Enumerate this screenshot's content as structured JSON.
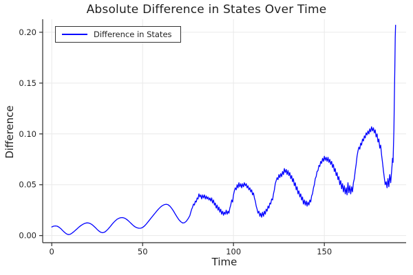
{
  "figure": {
    "background": "#FFFFFF"
  },
  "colors": {
    "line": "#0000FF",
    "grid": "#E9E9E9",
    "spine": "#2B2B2B",
    "tick": "#2B2B2B",
    "tick_text": "#1F1F1F",
    "legend_border": "#333333"
  },
  "chart_data": {
    "type": "line",
    "title": "Absolute Difference in States Over Time",
    "xlabel": "Time",
    "ylabel": "Difference",
    "xlim": [
      -5,
      195
    ],
    "ylim": [
      -0.007,
      0.2128
    ],
    "grid": true,
    "legend_position": "top-left",
    "x_ticks": [
      {
        "v": 0,
        "label": "0"
      },
      {
        "v": 50,
        "label": "50"
      },
      {
        "v": 100,
        "label": "100"
      },
      {
        "v": 150,
        "label": "150"
      }
    ],
    "y_ticks": [
      {
        "v": 0.0,
        "label": "0.00"
      },
      {
        "v": 0.05,
        "label": "0.05"
      },
      {
        "v": 0.1,
        "label": "0.10"
      },
      {
        "v": 0.15,
        "label": "0.15"
      },
      {
        "v": 0.2,
        "label": "0.20"
      }
    ],
    "series": [
      {
        "name": "Difference in States",
        "color": "#0000FF",
        "points": [
          [
            0,
            0.0085
          ],
          [
            1,
            0.0092
          ],
          [
            2,
            0.0095
          ],
          [
            3,
            0.0092
          ],
          [
            4,
            0.0082
          ],
          [
            5,
            0.0068
          ],
          [
            6,
            0.005
          ],
          [
            7,
            0.0032
          ],
          [
            8,
            0.0018
          ],
          [
            9,
            0.001
          ],
          [
            10,
            0.0012
          ],
          [
            11,
            0.0022
          ],
          [
            12,
            0.0036
          ],
          [
            13,
            0.0052
          ],
          [
            14,
            0.0068
          ],
          [
            15,
            0.0084
          ],
          [
            16,
            0.0098
          ],
          [
            17,
            0.011
          ],
          [
            18,
            0.0119
          ],
          [
            19,
            0.0124
          ],
          [
            20,
            0.0125
          ],
          [
            21,
            0.012
          ],
          [
            22,
            0.011
          ],
          [
            23,
            0.0095
          ],
          [
            24,
            0.0078
          ],
          [
            25,
            0.006
          ],
          [
            26,
            0.0044
          ],
          [
            27,
            0.0032
          ],
          [
            28,
            0.0028
          ],
          [
            29,
            0.0033
          ],
          [
            30,
            0.0046
          ],
          [
            31,
            0.0064
          ],
          [
            32,
            0.0085
          ],
          [
            33,
            0.0107
          ],
          [
            34,
            0.0128
          ],
          [
            35,
            0.0146
          ],
          [
            36,
            0.0161
          ],
          [
            37,
            0.0171
          ],
          [
            38,
            0.0176
          ],
          [
            39,
            0.0177
          ],
          [
            40,
            0.0172
          ],
          [
            41,
            0.0162
          ],
          [
            42,
            0.0148
          ],
          [
            43,
            0.0131
          ],
          [
            44,
            0.0113
          ],
          [
            45,
            0.0097
          ],
          [
            46,
            0.0084
          ],
          [
            47,
            0.0076
          ],
          [
            48,
            0.0072
          ],
          [
            49,
            0.0073
          ],
          [
            50,
            0.008
          ],
          [
            51,
            0.0094
          ],
          [
            52,
            0.0113
          ],
          [
            53,
            0.0135
          ],
          [
            54,
            0.0158
          ],
          [
            55,
            0.018
          ],
          [
            56,
            0.0202
          ],
          [
            57,
            0.0224
          ],
          [
            58,
            0.0246
          ],
          [
            59,
            0.0266
          ],
          [
            60,
            0.0283
          ],
          [
            61,
            0.0296
          ],
          [
            62,
            0.0305
          ],
          [
            63,
            0.0308
          ],
          [
            64,
            0.0303
          ],
          [
            65,
            0.029
          ],
          [
            66,
            0.0268
          ],
          [
            67,
            0.0241
          ],
          [
            68,
            0.0211
          ],
          [
            69,
            0.0181
          ],
          [
            70,
            0.0155
          ],
          [
            71,
            0.0136
          ],
          [
            72,
            0.0124
          ],
          [
            73,
            0.0126
          ],
          [
            74,
            0.014
          ],
          [
            75,
            0.0165
          ],
          [
            76,
            0.0196
          ],
          [
            76.5,
            0.023
          ],
          [
            77,
            0.026
          ],
          [
            77.5,
            0.028
          ],
          [
            78,
            0.031
          ],
          [
            78.5,
            0.03
          ],
          [
            79,
            0.034
          ],
          [
            79.5,
            0.033
          ],
          [
            80,
            0.037
          ],
          [
            80.5,
            0.036
          ],
          [
            81,
            0.041
          ],
          [
            81.5,
            0.038
          ],
          [
            82,
            0.04
          ],
          [
            82.5,
            0.036
          ],
          [
            83,
            0.04
          ],
          [
            83.5,
            0.037
          ],
          [
            84,
            0.04
          ],
          [
            84.5,
            0.036
          ],
          [
            85,
            0.039
          ],
          [
            85.5,
            0.036
          ],
          [
            86,
            0.038
          ],
          [
            86.5,
            0.035
          ],
          [
            87,
            0.037
          ],
          [
            87.5,
            0.034
          ],
          [
            88,
            0.037
          ],
          [
            88.5,
            0.032
          ],
          [
            89,
            0.035
          ],
          [
            89.5,
            0.03
          ],
          [
            90,
            0.032
          ],
          [
            90.5,
            0.027
          ],
          [
            91,
            0.03
          ],
          [
            91.5,
            0.025
          ],
          [
            92,
            0.028
          ],
          [
            92.5,
            0.023
          ],
          [
            93,
            0.026
          ],
          [
            93.5,
            0.021
          ],
          [
            94,
            0.024
          ],
          [
            94.5,
            0.02
          ],
          [
            95,
            0.023
          ],
          [
            95.5,
            0.021
          ],
          [
            96,
            0.025
          ],
          [
            96.5,
            0.021
          ],
          [
            97,
            0.024
          ],
          [
            97.5,
            0.022
          ],
          [
            98,
            0.027
          ],
          [
            98.5,
            0.03
          ],
          [
            99,
            0.035
          ],
          [
            99.5,
            0.033
          ],
          [
            100,
            0.04
          ],
          [
            100.5,
            0.044
          ],
          [
            101,
            0.047
          ],
          [
            101.5,
            0.045
          ],
          [
            102,
            0.05
          ],
          [
            102.5,
            0.047
          ],
          [
            103,
            0.052
          ],
          [
            103.5,
            0.048
          ],
          [
            104,
            0.051
          ],
          [
            104.5,
            0.047
          ],
          [
            105,
            0.051
          ],
          [
            105.5,
            0.048
          ],
          [
            106,
            0.052
          ],
          [
            106.5,
            0.049
          ],
          [
            107,
            0.051
          ],
          [
            107.5,
            0.047
          ],
          [
            108,
            0.049
          ],
          [
            108.5,
            0.045
          ],
          [
            109,
            0.047
          ],
          [
            109.5,
            0.043
          ],
          [
            110,
            0.045
          ],
          [
            110.5,
            0.04
          ],
          [
            111,
            0.042
          ],
          [
            111.5,
            0.037
          ],
          [
            112,
            0.034
          ],
          [
            112.5,
            0.029
          ],
          [
            113,
            0.026
          ],
          [
            113.5,
            0.022
          ],
          [
            114,
            0.024
          ],
          [
            114.5,
            0.019
          ],
          [
            115,
            0.022
          ],
          [
            115.5,
            0.018
          ],
          [
            116,
            0.023
          ],
          [
            116.5,
            0.019
          ],
          [
            117,
            0.024
          ],
          [
            117.5,
            0.021
          ],
          [
            118,
            0.026
          ],
          [
            118.5,
            0.024
          ],
          [
            119,
            0.029
          ],
          [
            119.5,
            0.027
          ],
          [
            120,
            0.032
          ],
          [
            120.5,
            0.031
          ],
          [
            121,
            0.036
          ],
          [
            121.5,
            0.035
          ],
          [
            122,
            0.041
          ],
          [
            122.5,
            0.045
          ],
          [
            123,
            0.051
          ],
          [
            123.5,
            0.054
          ],
          [
            124,
            0.057
          ],
          [
            124.5,
            0.055
          ],
          [
            125,
            0.06
          ],
          [
            125.5,
            0.057
          ],
          [
            126,
            0.061
          ],
          [
            126.5,
            0.058
          ],
          [
            127,
            0.063
          ],
          [
            127.5,
            0.06
          ],
          [
            128,
            0.066
          ],
          [
            128.5,
            0.062
          ],
          [
            129,
            0.065
          ],
          [
            129.5,
            0.06
          ],
          [
            130,
            0.064
          ],
          [
            130.5,
            0.059
          ],
          [
            131,
            0.062
          ],
          [
            131.5,
            0.056
          ],
          [
            132,
            0.059
          ],
          [
            132.5,
            0.053
          ],
          [
            133,
            0.056
          ],
          [
            133.5,
            0.049
          ],
          [
            134,
            0.052
          ],
          [
            134.5,
            0.045
          ],
          [
            135,
            0.048
          ],
          [
            135.5,
            0.041
          ],
          [
            136,
            0.044
          ],
          [
            136.5,
            0.038
          ],
          [
            137,
            0.041
          ],
          [
            137.5,
            0.035
          ],
          [
            138,
            0.038
          ],
          [
            138.5,
            0.031
          ],
          [
            139,
            0.035
          ],
          [
            139.5,
            0.03
          ],
          [
            140,
            0.034
          ],
          [
            140.5,
            0.029
          ],
          [
            141,
            0.033
          ],
          [
            141.5,
            0.03
          ],
          [
            142,
            0.035
          ],
          [
            142.5,
            0.033
          ],
          [
            143,
            0.039
          ],
          [
            143.5,
            0.041
          ],
          [
            144,
            0.047
          ],
          [
            144.5,
            0.05
          ],
          [
            145,
            0.056
          ],
          [
            145.5,
            0.058
          ],
          [
            146,
            0.063
          ],
          [
            146.5,
            0.064
          ],
          [
            147,
            0.069
          ],
          [
            147.5,
            0.068
          ],
          [
            148,
            0.073
          ],
          [
            148.5,
            0.071
          ],
          [
            149,
            0.076
          ],
          [
            149.5,
            0.073
          ],
          [
            150,
            0.078
          ],
          [
            150.5,
            0.074
          ],
          [
            151,
            0.077
          ],
          [
            151.5,
            0.073
          ],
          [
            152,
            0.077
          ],
          [
            152.5,
            0.072
          ],
          [
            153,
            0.075
          ],
          [
            153.5,
            0.07
          ],
          [
            154,
            0.073
          ],
          [
            154.5,
            0.067
          ],
          [
            155,
            0.07
          ],
          [
            155.5,
            0.063
          ],
          [
            156,
            0.066
          ],
          [
            156.5,
            0.059
          ],
          [
            157,
            0.062
          ],
          [
            157.5,
            0.055
          ],
          [
            158,
            0.058
          ],
          [
            158.5,
            0.05
          ],
          [
            159,
            0.054
          ],
          [
            159.5,
            0.046
          ],
          [
            160,
            0.051
          ],
          [
            160.5,
            0.043
          ],
          [
            161,
            0.049
          ],
          [
            161.5,
            0.041
          ],
          [
            162,
            0.047
          ],
          [
            162.5,
            0.04
          ],
          [
            163,
            0.052
          ],
          [
            163.5,
            0.042
          ],
          [
            164,
            0.049
          ],
          [
            164.5,
            0.041
          ],
          [
            165,
            0.048
          ],
          [
            165.5,
            0.043
          ],
          [
            166,
            0.052
          ],
          [
            166.5,
            0.056
          ],
          [
            167,
            0.064
          ],
          [
            167.5,
            0.07
          ],
          [
            168,
            0.078
          ],
          [
            168.5,
            0.083
          ],
          [
            169,
            0.087
          ],
          [
            169.5,
            0.085
          ],
          [
            170,
            0.091
          ],
          [
            170.5,
            0.089
          ],
          [
            171,
            0.095
          ],
          [
            171.5,
            0.093
          ],
          [
            172,
            0.098
          ],
          [
            172.5,
            0.096
          ],
          [
            173,
            0.101
          ],
          [
            173.5,
            0.099
          ],
          [
            174,
            0.103
          ],
          [
            174.5,
            0.1
          ],
          [
            175,
            0.105
          ],
          [
            175.5,
            0.102
          ],
          [
            176,
            0.107
          ],
          [
            176.5,
            0.103
          ],
          [
            177,
            0.106
          ],
          [
            177.5,
            0.101
          ],
          [
            178,
            0.104
          ],
          [
            178.5,
            0.097
          ],
          [
            179,
            0.1
          ],
          [
            179.5,
            0.092
          ],
          [
            180,
            0.095
          ],
          [
            180.5,
            0.086
          ],
          [
            181,
            0.089
          ],
          [
            181.5,
            0.079
          ],
          [
            182,
            0.072
          ],
          [
            182.5,
            0.064
          ],
          [
            183,
            0.057
          ],
          [
            183.5,
            0.05
          ],
          [
            184,
            0.053
          ],
          [
            184.5,
            0.047
          ],
          [
            185,
            0.056
          ],
          [
            185.5,
            0.048
          ],
          [
            186,
            0.06
          ],
          [
            186.5,
            0.052
          ],
          [
            187,
            0.063
          ],
          [
            187.3,
            0.07
          ],
          [
            187.5,
            0.076
          ],
          [
            187.8,
            0.072
          ],
          [
            188,
            0.085
          ],
          [
            188.3,
            0.105
          ],
          [
            188.5,
            0.13
          ],
          [
            188.8,
            0.165
          ],
          [
            189,
            0.195
          ],
          [
            189.2,
            0.207
          ]
        ]
      }
    ]
  }
}
